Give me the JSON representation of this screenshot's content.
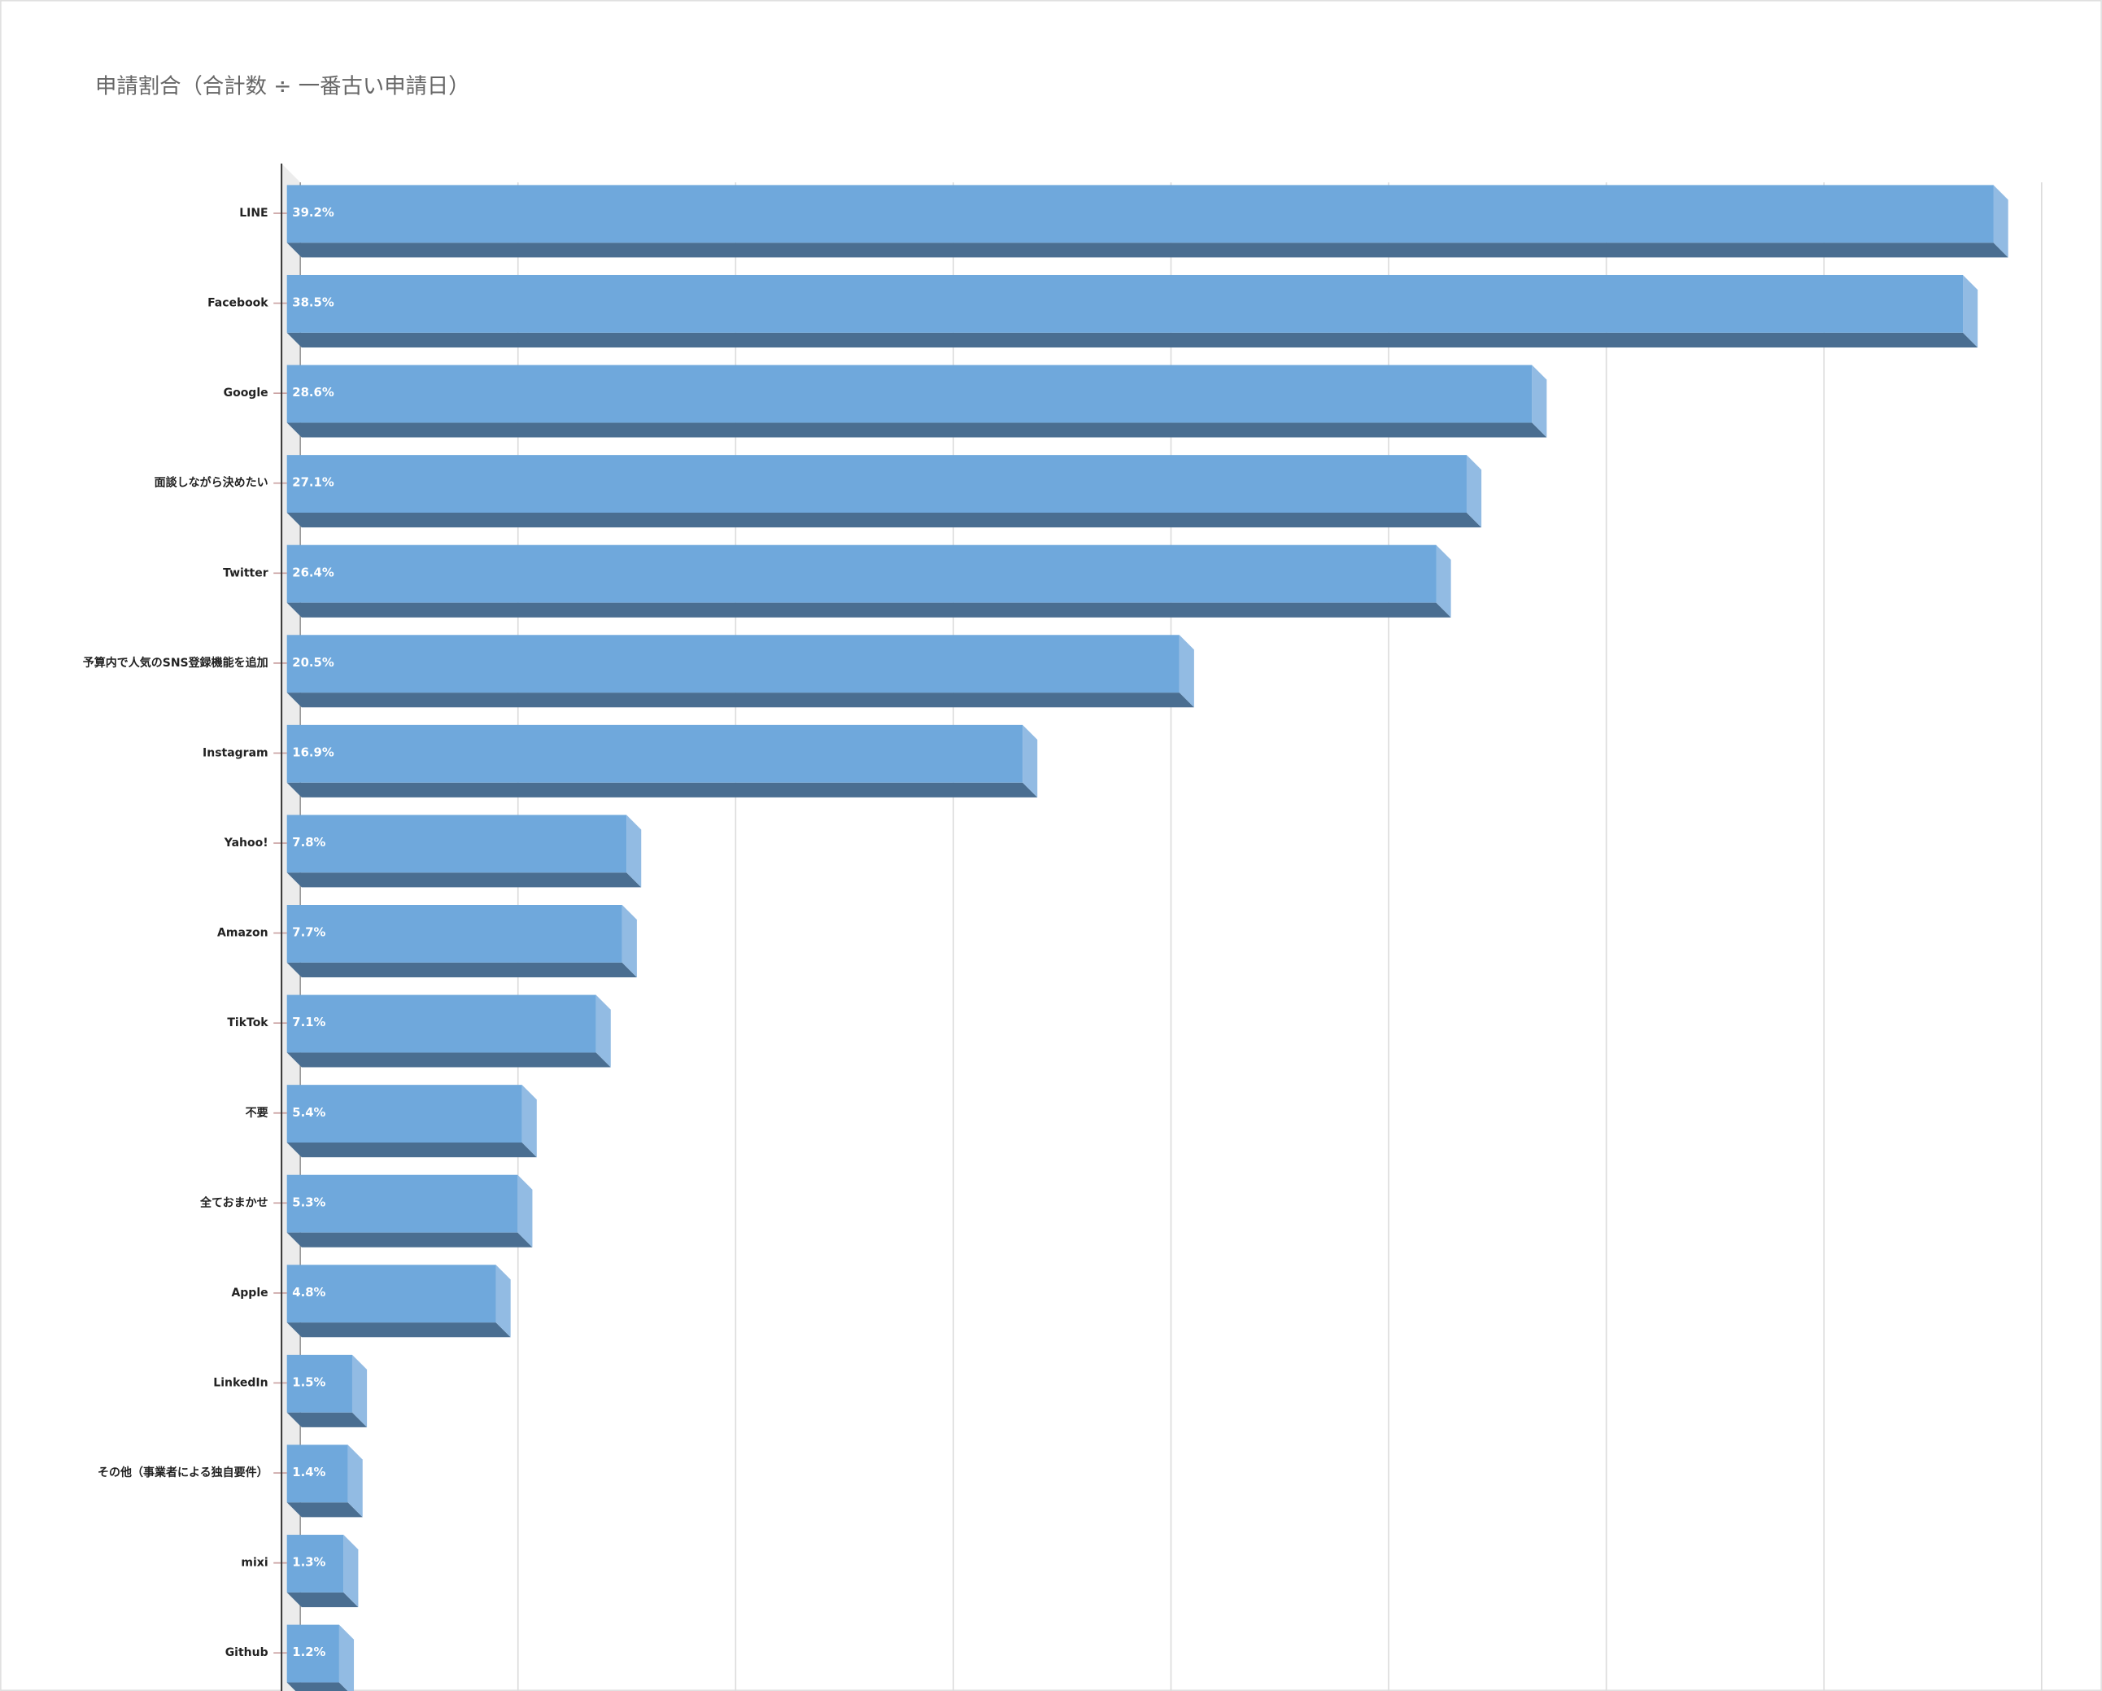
{
  "chart_data": {
    "type": "bar3d",
    "orientation": "horizontal",
    "title": "申請割合（合計数 ÷ 一番古い申請日）",
    "categories": [
      "LINE",
      "Facebook",
      "Google",
      "面談しながら決めたい",
      "Twitter",
      "予算内で人気のSNS登録機能を追加",
      "Instagram",
      "Yahoo!",
      "Amazon",
      "TikTok",
      "不要",
      "全ておまかせ",
      "Apple",
      "LinkedIn",
      "その他（事業者による独自要件）",
      "mixi",
      "Github"
    ],
    "values": [
      39.2,
      38.5,
      28.6,
      27.1,
      26.4,
      20.5,
      16.9,
      7.8,
      7.7,
      7.1,
      5.4,
      5.3,
      4.8,
      1.5,
      1.4,
      1.3,
      1.2
    ],
    "value_labels": [
      "39.2%",
      "38.5%",
      "28.6%",
      "27.1%",
      "26.4%",
      "20.5%",
      "16.9%",
      "7.8%",
      "7.7%",
      "7.1%",
      "5.4%",
      "5.3%",
      "4.8%",
      "1.5%",
      "1.4%",
      "1.3%",
      "1.2%"
    ],
    "color": "#6fa8dc",
    "xlim": [
      0,
      40
    ],
    "xticks": [
      0,
      5,
      10,
      15,
      20,
      25,
      30,
      35,
      40
    ],
    "grid": true
  }
}
